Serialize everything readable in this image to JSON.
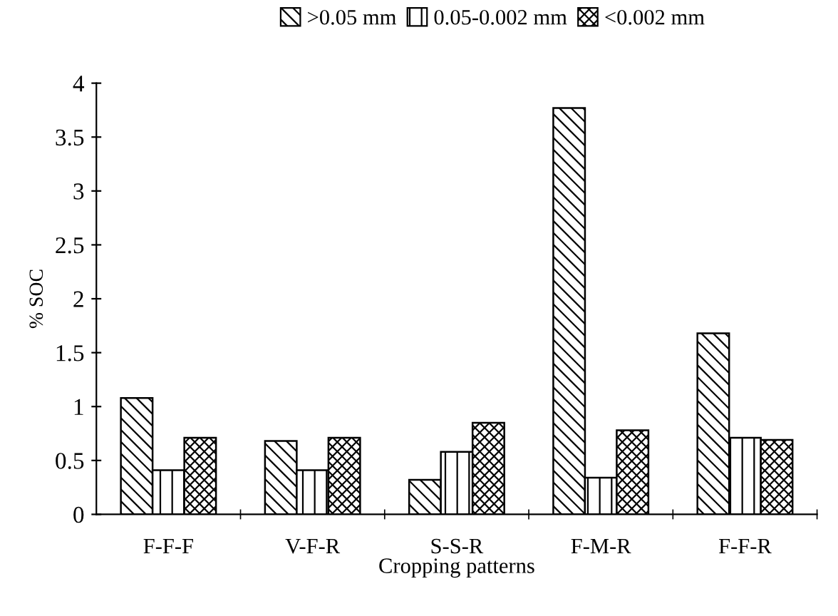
{
  "chart_data": {
    "type": "bar",
    "xlabel": "Cropping patterns",
    "ylabel": "% SOC",
    "categories": [
      "F-F-F",
      "V-F-R",
      "S-S-R",
      "F-M-R",
      "F-F-R"
    ],
    "series": [
      {
        "name": ">0.05 mm",
        "color": "#000000",
        "values": [
          1.08,
          0.68,
          0.32,
          3.77,
          1.68
        ]
      },
      {
        "name": "0.05-0.002 mm",
        "color": "#000000",
        "values": [
          0.41,
          0.41,
          0.58,
          0.34,
          0.71
        ]
      },
      {
        "name": "<0.002 mm",
        "color": "#000000",
        "values": [
          0.71,
          0.71,
          0.85,
          0.78,
          0.69
        ]
      }
    ],
    "ylim": [
      0,
      4
    ],
    "yticks": [
      0,
      0.5,
      1,
      1.5,
      2,
      2.5,
      3,
      3.5,
      4
    ],
    "grid": false,
    "legend": "top"
  }
}
